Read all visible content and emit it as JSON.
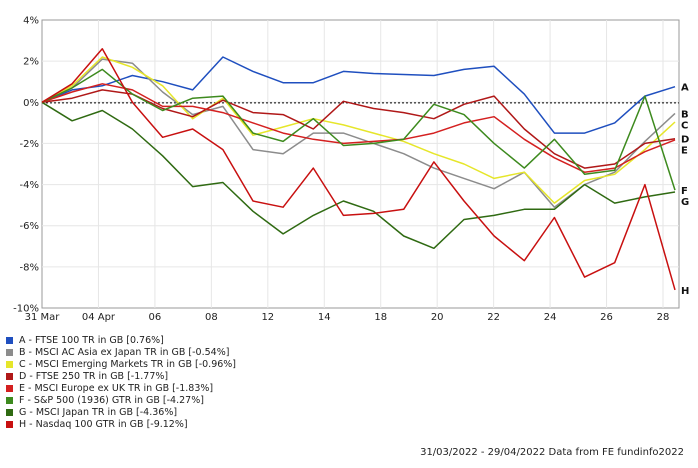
{
  "chart_data": {
    "type": "line",
    "x_ticks": [
      "31 Mar",
      "04 Apr",
      "06",
      "08",
      "12",
      "14",
      "18",
      "20",
      "22",
      "24",
      "26",
      "28"
    ],
    "ylim": [
      -10,
      4
    ],
    "y_ticks": [
      "4%",
      "2%",
      "0%",
      "-2%",
      "-4%",
      "-6%",
      "-8%",
      "-10%"
    ],
    "grid": true,
    "series": [
      {
        "key": "A",
        "name": "A - FTSE 100 TR in GB [0.76%]",
        "color": "#1f4fbf",
        "values": [
          0,
          0.6,
          0.8,
          1.3,
          1.0,
          0.6,
          2.2,
          1.5,
          0.95,
          0.95,
          1.5,
          1.4,
          1.35,
          1.3,
          1.6,
          1.75,
          0.4,
          -1.5,
          -1.5,
          -1.0,
          0.3,
          0.76
        ]
      },
      {
        "key": "B",
        "name": "B - MSCI AC Asia ex Japan TR in GB [-0.54%]",
        "color": "#8c8c8c",
        "values": [
          0,
          0.7,
          2.1,
          1.9,
          0.5,
          -0.6,
          -0.2,
          -2.3,
          -2.5,
          -1.5,
          -1.5,
          -2.0,
          -2.5,
          -3.2,
          -3.7,
          -4.2,
          -3.4,
          -5.1,
          -4.0,
          -3.4,
          -1.9,
          -0.54
        ]
      },
      {
        "key": "C",
        "name": "C - MSCI Emerging Markets TR in GB [-0.96%]",
        "color": "#e6e62a",
        "values": [
          0,
          0.8,
          2.2,
          1.7,
          0.8,
          -0.8,
          0.2,
          -1.6,
          -1.2,
          -0.8,
          -1.1,
          -1.5,
          -1.9,
          -2.5,
          -3.0,
          -3.7,
          -3.4,
          -4.9,
          -3.8,
          -3.5,
          -2.3,
          -0.96
        ]
      },
      {
        "key": "D",
        "name": "D - FTSE 250 TR in GB [-1.77%]",
        "color": "#b01818",
        "values": [
          0,
          0.2,
          0.6,
          0.4,
          -0.3,
          -0.7,
          0.1,
          -0.5,
          -0.6,
          -1.3,
          0.05,
          -0.3,
          -0.5,
          -0.8,
          -0.1,
          0.3,
          -1.3,
          -2.5,
          -3.2,
          -3.0,
          -2.0,
          -1.77
        ]
      },
      {
        "key": "E",
        "name": "E - MSCI Europe ex UK TR in GB [-1.83%]",
        "color": "#d42020",
        "values": [
          0,
          0.5,
          0.9,
          0.6,
          -0.2,
          -0.2,
          -0.5,
          -1.0,
          -1.5,
          -1.8,
          -2.0,
          -1.9,
          -1.8,
          -1.5,
          -1.0,
          -0.7,
          -1.8,
          -2.7,
          -3.4,
          -3.2,
          -2.4,
          -1.83
        ]
      },
      {
        "key": "F",
        "name": "F - S&P 500 (1936) GTR in GB [-4.27%]",
        "color": "#3d8a1e",
        "values": [
          0,
          0.7,
          1.6,
          0.4,
          -0.4,
          0.2,
          0.3,
          -1.5,
          -1.9,
          -0.8,
          -2.1,
          -2.0,
          -1.8,
          -0.1,
          -0.6,
          -2.0,
          -3.2,
          -1.8,
          -3.5,
          -3.3,
          0.3,
          -4.27
        ]
      },
      {
        "key": "G",
        "name": "G - MSCI Japan TR in GB [-4.36%]",
        "color": "#2f6a12",
        "values": [
          0,
          -0.9,
          -0.4,
          -1.3,
          -2.6,
          -4.1,
          -3.9,
          -5.3,
          -6.4,
          -5.5,
          -4.8,
          -5.3,
          -6.5,
          -7.1,
          -5.7,
          -5.5,
          -5.2,
          -5.2,
          -4.0,
          -4.9,
          -4.6,
          -4.36
        ]
      },
      {
        "key": "H",
        "name": "H - Nasdaq 100 GTR in GB [-9.12%]",
        "color": "#c81010",
        "values": [
          0,
          0.9,
          2.6,
          0.0,
          -1.7,
          -1.3,
          -2.3,
          -4.8,
          -5.1,
          -3.2,
          -5.5,
          -5.4,
          -5.2,
          -2.9,
          -4.8,
          -6.5,
          -7.7,
          -5.6,
          -8.5,
          -7.8,
          -4.0,
          -9.12
        ]
      }
    ]
  },
  "footer_note": "31/03/2022 - 29/04/2022 Data from FE fundinfo2022"
}
